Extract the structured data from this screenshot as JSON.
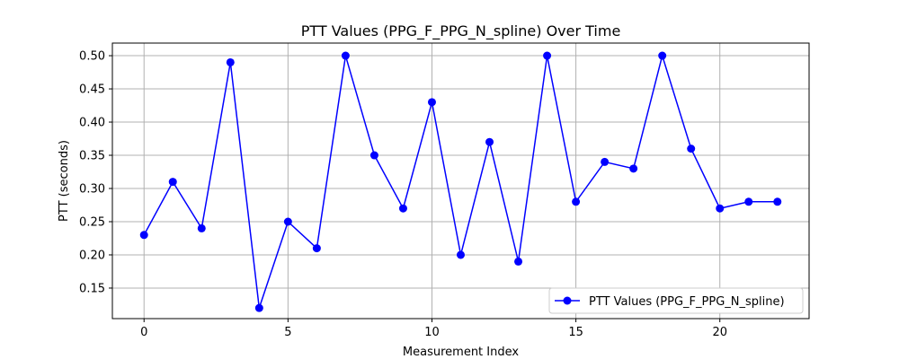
{
  "chart_data": {
    "type": "line",
    "title": "PTT Values (PPG_F_PPG_N_spline) Over Time",
    "xlabel": "Measurement Index",
    "ylabel": "PTT (seconds)",
    "x": [
      0,
      1,
      2,
      3,
      4,
      5,
      6,
      7,
      8,
      9,
      10,
      11,
      12,
      13,
      14,
      15,
      16,
      17,
      18,
      19,
      20,
      21,
      22
    ],
    "series": [
      {
        "name": "PTT Values (PPG_F_PPG_N_spline)",
        "color": "#0000ff",
        "marker": "circle",
        "values": [
          0.23,
          0.31,
          0.24,
          0.49,
          0.12,
          0.25,
          0.21,
          0.5,
          0.35,
          0.27,
          0.43,
          0.2,
          0.37,
          0.19,
          0.5,
          0.28,
          0.34,
          0.33,
          0.5,
          0.36,
          0.27,
          0.28,
          0.28
        ]
      }
    ],
    "xlim": [
      -1.1,
      23.1
    ],
    "ylim": [
      0.104,
      0.519
    ],
    "xticks": [
      0,
      5,
      10,
      15,
      20
    ],
    "xtick_labels": [
      "0",
      "5",
      "10",
      "15",
      "20"
    ],
    "yticks": [
      0.15,
      0.2,
      0.25,
      0.3,
      0.35,
      0.4,
      0.45,
      0.5
    ],
    "ytick_labels": [
      "0.15",
      "0.20",
      "0.25",
      "0.30",
      "0.35",
      "0.40",
      "0.45",
      "0.50"
    ],
    "grid": true,
    "legend_position": "lower-right"
  }
}
